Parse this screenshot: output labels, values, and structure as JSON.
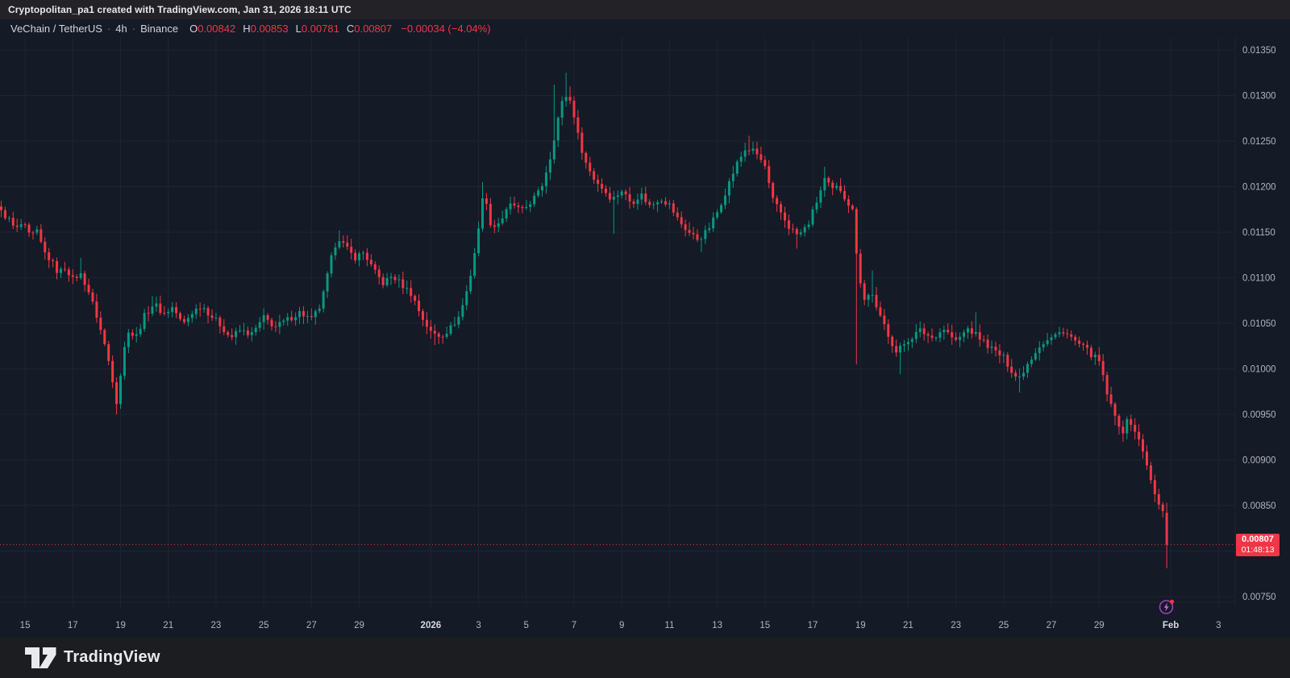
{
  "title_bar": {
    "text": "Cryptopolitan_pa1 created with TradingView.com, Jan 31, 2026 18:11 UTC"
  },
  "legend": {
    "symbol": "VeChain / TetherUS",
    "separator": "·",
    "interval": "4h",
    "exchange": "Binance",
    "o_label": "O",
    "o_value": "0.00842",
    "h_label": "H",
    "h_value": "0.00853",
    "l_label": "L",
    "l_value": "0.00781",
    "c_label": "C",
    "c_value": "0.00807",
    "change": "−0.00034 (−4.04%)"
  },
  "price_label": {
    "price": "0.00807",
    "countdown": "01:48:13"
  },
  "footer": {
    "brand": "TradingView"
  },
  "colors": {
    "up": "#089981",
    "down": "#f23645",
    "background": "#141a26",
    "titlebar_bg": "#232327",
    "footer_bg": "#1c1d21",
    "grid": "#1e2432",
    "border": "#20242f",
    "axis_text": "#b2b5be",
    "axis_text_emphasis": "#d8dade",
    "legend_text": "#d1d4dc",
    "event_purple": "#a13dbf"
  },
  "chart_data": {
    "type": "candlestick",
    "interval": "4h",
    "x_axis": {
      "unit": "days since 2025-12-15 00:00 UTC",
      "visible_range": [
        -1.05,
        50.7
      ],
      "first_candle_t": -1.0,
      "last_candle_t": 47.8333,
      "candle_interval_days": 0.166667,
      "ticks": [
        {
          "label": "15",
          "t": 0
        },
        {
          "label": "17",
          "t": 2
        },
        {
          "label": "19",
          "t": 4
        },
        {
          "label": "21",
          "t": 6
        },
        {
          "label": "23",
          "t": 8
        },
        {
          "label": "25",
          "t": 10
        },
        {
          "label": "27",
          "t": 12
        },
        {
          "label": "29",
          "t": 14
        },
        {
          "label": "2026",
          "t": 17,
          "emphasis": true
        },
        {
          "label": "3",
          "t": 19
        },
        {
          "label": "5",
          "t": 21
        },
        {
          "label": "7",
          "t": 23
        },
        {
          "label": "9",
          "t": 25
        },
        {
          "label": "11",
          "t": 27
        },
        {
          "label": "13",
          "t": 29
        },
        {
          "label": "15",
          "t": 31
        },
        {
          "label": "17",
          "t": 33
        },
        {
          "label": "19",
          "t": 35
        },
        {
          "label": "21",
          "t": 37
        },
        {
          "label": "23",
          "t": 39
        },
        {
          "label": "25",
          "t": 41
        },
        {
          "label": "27",
          "t": 43
        },
        {
          "label": "29",
          "t": 45
        },
        {
          "label": "Feb",
          "t": 48,
          "emphasis": true
        },
        {
          "label": "3",
          "t": 50
        }
      ]
    },
    "y_axis": {
      "visible_range": [
        0.007438,
        0.013642
      ],
      "tick_step": 0.0005,
      "decimals": 5,
      "ticks": [
        0.0135,
        0.013,
        0.0125,
        0.012,
        0.0115,
        0.011,
        0.0105,
        0.01,
        0.0095,
        0.009,
        0.0085,
        0.0075
      ],
      "hidden_tick": 0.008
    },
    "close_path": [
      [
        -1.0,
        0.01172
      ],
      [
        -0.7,
        0.01165
      ],
      [
        -0.4,
        0.01152
      ],
      [
        -0.1,
        0.0116
      ],
      [
        0.2,
        0.01145
      ],
      [
        0.5,
        0.0115
      ],
      [
        0.8,
        0.01128
      ],
      [
        1.1,
        0.01118
      ],
      [
        1.4,
        0.01105
      ],
      [
        1.7,
        0.01112
      ],
      [
        2.0,
        0.01098
      ],
      [
        2.3,
        0.01105
      ],
      [
        2.6,
        0.0109
      ],
      [
        3.0,
        0.01058
      ],
      [
        3.3,
        0.0103
      ],
      [
        3.6,
        0.00998
      ],
      [
        3.85,
        0.00962
      ],
      [
        4.1,
        0.01015
      ],
      [
        4.35,
        0.01045
      ],
      [
        4.6,
        0.01032
      ],
      [
        5.0,
        0.01058
      ],
      [
        5.4,
        0.01072
      ],
      [
        5.8,
        0.0106
      ],
      [
        6.2,
        0.01068
      ],
      [
        6.6,
        0.01048
      ],
      [
        7.0,
        0.01062
      ],
      [
        7.4,
        0.0107
      ],
      [
        7.8,
        0.01058
      ],
      [
        8.2,
        0.01048
      ],
      [
        8.6,
        0.01034
      ],
      [
        9.0,
        0.01042
      ],
      [
        9.5,
        0.01038
      ],
      [
        10.0,
        0.01056
      ],
      [
        10.5,
        0.01046
      ],
      [
        11.0,
        0.01054
      ],
      [
        11.5,
        0.01062
      ],
      [
        12.0,
        0.01054
      ],
      [
        12.4,
        0.0107
      ],
      [
        12.8,
        0.01118
      ],
      [
        13.1,
        0.01146
      ],
      [
        13.4,
        0.01134
      ],
      [
        13.8,
        0.01122
      ],
      [
        14.2,
        0.01128
      ],
      [
        14.6,
        0.01108
      ],
      [
        15.0,
        0.01094
      ],
      [
        15.4,
        0.01102
      ],
      [
        15.8,
        0.01092
      ],
      [
        16.2,
        0.01082
      ],
      [
        16.6,
        0.01058
      ],
      [
        17.0,
        0.0104
      ],
      [
        17.4,
        0.01036
      ],
      [
        17.8,
        0.01044
      ],
      [
        18.2,
        0.01058
      ],
      [
        18.6,
        0.01094
      ],
      [
        19.0,
        0.01152
      ],
      [
        19.2,
        0.01198
      ],
      [
        19.45,
        0.01162
      ],
      [
        19.7,
        0.01156
      ],
      [
        20.0,
        0.01166
      ],
      [
        20.4,
        0.01182
      ],
      [
        20.8,
        0.01172
      ],
      [
        21.2,
        0.01184
      ],
      [
        21.6,
        0.01196
      ],
      [
        22.0,
        0.01232
      ],
      [
        22.3,
        0.01272
      ],
      [
        22.6,
        0.01302
      ],
      [
        22.9,
        0.01292
      ],
      [
        23.2,
        0.01252
      ],
      [
        23.5,
        0.01226
      ],
      [
        23.8,
        0.0121
      ],
      [
        24.2,
        0.01198
      ],
      [
        24.6,
        0.01186
      ],
      [
        25.0,
        0.01196
      ],
      [
        25.4,
        0.01182
      ],
      [
        25.8,
        0.01192
      ],
      [
        26.2,
        0.01178
      ],
      [
        26.6,
        0.01188
      ],
      [
        27.0,
        0.0118
      ],
      [
        27.4,
        0.01162
      ],
      [
        27.8,
        0.0115
      ],
      [
        28.2,
        0.01142
      ],
      [
        28.6,
        0.01152
      ],
      [
        29.0,
        0.01172
      ],
      [
        29.4,
        0.01198
      ],
      [
        29.8,
        0.01224
      ],
      [
        30.2,
        0.01242
      ],
      [
        30.6,
        0.01238
      ],
      [
        31.0,
        0.01222
      ],
      [
        31.3,
        0.01186
      ],
      [
        31.7,
        0.0117
      ],
      [
        32.0,
        0.01156
      ],
      [
        32.4,
        0.01146
      ],
      [
        32.8,
        0.01158
      ],
      [
        33.2,
        0.01186
      ],
      [
        33.5,
        0.01208
      ],
      [
        33.8,
        0.01196
      ],
      [
        34.1,
        0.012
      ],
      [
        34.4,
        0.01186
      ],
      [
        34.7,
        0.01172
      ],
      [
        34.9,
        0.01108
      ],
      [
        35.2,
        0.01072
      ],
      [
        35.45,
        0.01088
      ],
      [
        35.7,
        0.01062
      ],
      [
        36.0,
        0.01048
      ],
      [
        36.5,
        0.01018
      ],
      [
        37.0,
        0.01032
      ],
      [
        37.5,
        0.01042
      ],
      [
        38.0,
        0.01034
      ],
      [
        38.5,
        0.01044
      ],
      [
        39.0,
        0.0103
      ],
      [
        39.5,
        0.01044
      ],
      [
        40.0,
        0.01034
      ],
      [
        40.5,
        0.01022
      ],
      [
        41.0,
        0.01012
      ],
      [
        41.6,
        0.00988
      ],
      [
        42.0,
        0.01006
      ],
      [
        42.5,
        0.01026
      ],
      [
        43.0,
        0.01034
      ],
      [
        43.5,
        0.01042
      ],
      [
        44.0,
        0.0103
      ],
      [
        44.5,
        0.0102
      ],
      [
        45.0,
        0.01008
      ],
      [
        45.3,
        0.00976
      ],
      [
        45.6,
        0.0095
      ],
      [
        46.0,
        0.00932
      ],
      [
        46.25,
        0.00946
      ],
      [
        46.5,
        0.00932
      ],
      [
        46.8,
        0.00912
      ],
      [
        47.0,
        0.00896
      ],
      [
        47.2,
        0.00872
      ],
      [
        47.4,
        0.00856
      ],
      [
        47.67,
        0.00842
      ],
      [
        47.8333,
        0.00807
      ]
    ],
    "spikes": [
      {
        "t": -0.9,
        "high": 0.01178
      },
      {
        "t": 2.3,
        "high": 0.01122
      },
      {
        "t": 3.85,
        "low": 0.0095
      },
      {
        "t": 5.3,
        "high": 0.0108
      },
      {
        "t": 13.1,
        "high": 0.01152
      },
      {
        "t": 17.1,
        "low": 0.01026
      },
      {
        "t": 19.2,
        "high": 0.01205
      },
      {
        "t": 22.2,
        "high": 0.01312
      },
      {
        "t": 22.6,
        "high": 0.01325
      },
      {
        "t": 22.9,
        "high": 0.0131
      },
      {
        "t": 24.6,
        "low": 0.01148
      },
      {
        "t": 28.3,
        "low": 0.01128
      },
      {
        "t": 30.3,
        "high": 0.01256
      },
      {
        "t": 32.3,
        "low": 0.01132
      },
      {
        "t": 33.5,
        "high": 0.01222
      },
      {
        "t": 34.9,
        "low": 0.01005
      },
      {
        "t": 35.45,
        "high": 0.01108
      },
      {
        "t": 36.7,
        "low": 0.00994
      },
      {
        "t": 39.9,
        "high": 0.01062
      },
      {
        "t": 41.6,
        "low": 0.00974
      },
      {
        "t": 45.6,
        "low": 0.00938
      },
      {
        "t": 46.0,
        "low": 0.0092
      }
    ],
    "last_candle": {
      "open": 0.00842,
      "high": 0.00853,
      "low": 0.00781,
      "close": 0.00807
    },
    "price_line": {
      "value": 0.00807,
      "style": "dotted",
      "color": "#f23645"
    },
    "render": {
      "noise": 3.5e-05,
      "wick": 7e-05
    }
  }
}
